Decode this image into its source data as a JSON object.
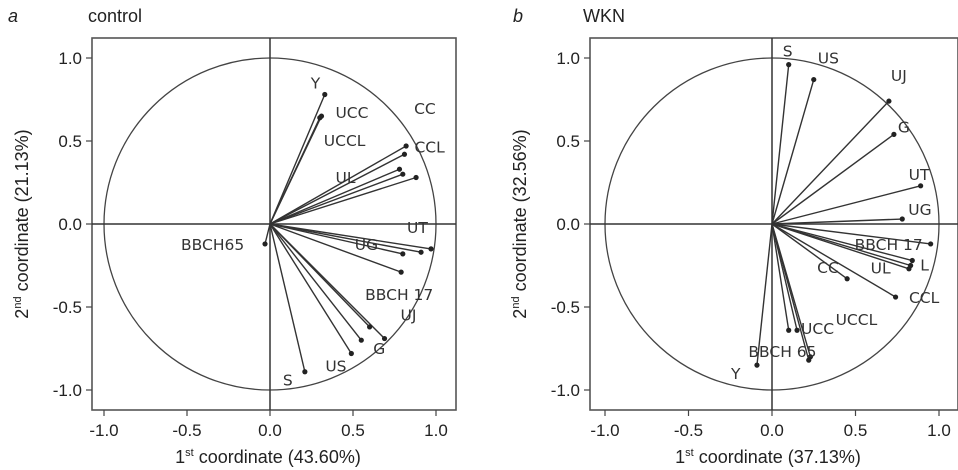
{
  "chart_data": [
    {
      "type": "scatter",
      "panel": "a",
      "title": "control",
      "xlabel": {
        "prefix": "1",
        "sup": "st",
        "text": " coordinate (43.60%)"
      },
      "ylabel": {
        "prefix": "2",
        "sup": "nd",
        "text": " coordinate (21.13%)"
      },
      "xlim": [
        -1.1,
        1.1
      ],
      "ylim": [
        -1.1,
        1.1
      ],
      "xticks": [
        "-1.0",
        "-0.5",
        "0.0",
        "0.5",
        "1.0"
      ],
      "yticks": [
        "1.0",
        "0.5",
        "0.0",
        "-0.5",
        "-1.0"
      ],
      "vectors": [
        {
          "label": "Y",
          "x": 0.33,
          "y": 0.78
        },
        {
          "label": "UCC",
          "x": 0.31,
          "y": 0.65
        },
        {
          "label": "UCCL",
          "x": 0.3,
          "y": 0.64
        },
        {
          "label": "CC",
          "x": 0.82,
          "y": 0.47
        },
        {
          "label": "CCL",
          "x": 0.81,
          "y": 0.42
        },
        {
          "label": "UL",
          "x": 0.78,
          "y": 0.33
        },
        {
          "label": "",
          "x": 0.8,
          "y": 0.3
        },
        {
          "label": "",
          "x": 0.88,
          "y": 0.28
        },
        {
          "label": "UT",
          "x": 0.97,
          "y": -0.15
        },
        {
          "label": "UG",
          "x": 0.8,
          "y": -0.18
        },
        {
          "label": "",
          "x": 0.91,
          "y": -0.17
        },
        {
          "label": "BBCH 17",
          "x": 0.79,
          "y": -0.29
        },
        {
          "label": "UJ",
          "x": 0.69,
          "y": -0.69
        },
        {
          "label": "",
          "x": 0.6,
          "y": -0.62
        },
        {
          "label": "G",
          "x": 0.55,
          "y": -0.7
        },
        {
          "label": "US",
          "x": 0.49,
          "y": -0.78
        },
        {
          "label": "S",
          "x": 0.21,
          "y": -0.89
        },
        {
          "label": "BBCH65",
          "x": -0.03,
          "y": -0.12
        }
      ]
    },
    {
      "type": "scatter",
      "panel": "b",
      "title": "WKN",
      "xlabel": {
        "prefix": "1",
        "sup": "st",
        "text": " coordinate (37.13%)"
      },
      "ylabel": {
        "prefix": "2",
        "sup": "nd",
        "text": " coordinate (32.56%)"
      },
      "xlim": [
        -1.1,
        1.1
      ],
      "ylim": [
        -1.1,
        1.1
      ],
      "xticks": [
        "-1.0",
        "-0.5",
        "0.0",
        "0.5",
        "1.0"
      ],
      "yticks": [
        "1.0",
        "0.5",
        "0.0",
        "-0.5",
        "-1.0"
      ],
      "vectors": [
        {
          "label": "S",
          "x": 0.1,
          "y": 0.96
        },
        {
          "label": "US",
          "x": 0.25,
          "y": 0.87
        },
        {
          "label": "UJ",
          "x": 0.7,
          "y": 0.74
        },
        {
          "label": "G",
          "x": 0.73,
          "y": 0.54
        },
        {
          "label": "UT",
          "x": 0.89,
          "y": 0.23
        },
        {
          "label": "UG",
          "x": 0.78,
          "y": 0.03
        },
        {
          "label": "BBCH 17",
          "x": 0.95,
          "y": -0.12
        },
        {
          "label": "L",
          "x": 0.84,
          "y": -0.22
        },
        {
          "label": "UL",
          "x": 0.83,
          "y": -0.25
        },
        {
          "label": "CCL",
          "x": 0.82,
          "y": -0.27
        },
        {
          "label": "CC",
          "x": 0.45,
          "y": -0.33
        },
        {
          "label": "UCCL",
          "x": 0.74,
          "y": -0.44
        },
        {
          "label": "UCC",
          "x": 0.15,
          "y": -0.64
        },
        {
          "label": "",
          "x": 0.1,
          "y": -0.64
        },
        {
          "label": "BBCH 65",
          "x": 0.23,
          "y": -0.8
        },
        {
          "label": "",
          "x": 0.22,
          "y": -0.82
        },
        {
          "label": "Y",
          "x": -0.09,
          "y": -0.85
        }
      ]
    }
  ]
}
